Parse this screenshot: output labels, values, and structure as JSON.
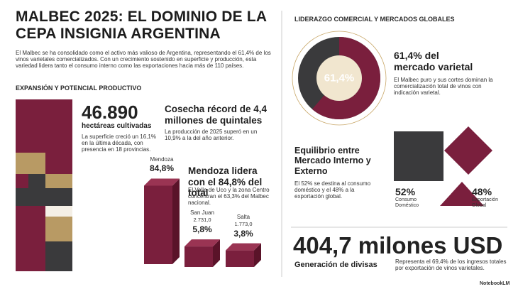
{
  "header": {
    "title": "MALBEC 2025: EL DOMINIO DE LA CEPA INSIGNIA ARGENTINA",
    "intro": "El Malbec se ha consolidado como el activo más valioso de Argentina, representando el 61,4% de los vinos varietales comercializados. Con un crecimiento sostenido en superficie y producción, esta variedad lidera tanto el consumo interno como las exportaciones hacia más de 110 países."
  },
  "left": {
    "section_title": "EXPANSIÓN Y POTENCIAL PRODUCTIVO",
    "hectares": {
      "amount": "46.890",
      "label": "hectáreas cultivadas",
      "description": "La superficie creció un 16,1% en la última década, con presencia en 18 provincias."
    },
    "harvest": {
      "title": "Cosecha récord de 4,4 millones de quintales",
      "description": "La producción de 2025 superó en un 10,9% a la del año anterior."
    },
    "mendoza": {
      "title": "Mendoza lidera con el 84,8% del total",
      "description": "El Valle de Uco y la zona Centro concentran el 63,3% del Malbec nacional."
    },
    "provinces": [
      {
        "name": "Mendoza",
        "value": 84.8,
        "label": "84,8%"
      },
      {
        "name": "San Juan",
        "volume": "2.731,0",
        "value": 5.8,
        "label": "5,8%"
      },
      {
        "name": "Salta",
        "volume": "1.773,0",
        "value": 3.8,
        "label": "3,8%"
      }
    ]
  },
  "right": {
    "section_title": "LIDERAZGO COMERCIAL Y MERCADOS GLOBALES",
    "varietal": {
      "value": 61.4,
      "label": "61,4%",
      "title": "61,4% del mercado varietal",
      "description": "El Malbec puro y sus cortes dominan la comercialización total de vinos con indicación varietal."
    },
    "balance": {
      "title": "Equilibrio entre Mercado Interno y Externo",
      "description": "El 52% se destina al consumo doméstico y el 48% a la exportación global.",
      "domestic": {
        "label": "52%",
        "name": "Consumo Doméstico"
      },
      "export": {
        "label": "48%",
        "name": "Exportación Global"
      }
    },
    "exports": {
      "amount": "404,7 milones USD",
      "title": "Generación de divisas",
      "description": "Representa el 69,4% de los ingresos totales por exportación de vinos varietales."
    }
  },
  "footer": {
    "brand": "NotebookLM"
  }
}
